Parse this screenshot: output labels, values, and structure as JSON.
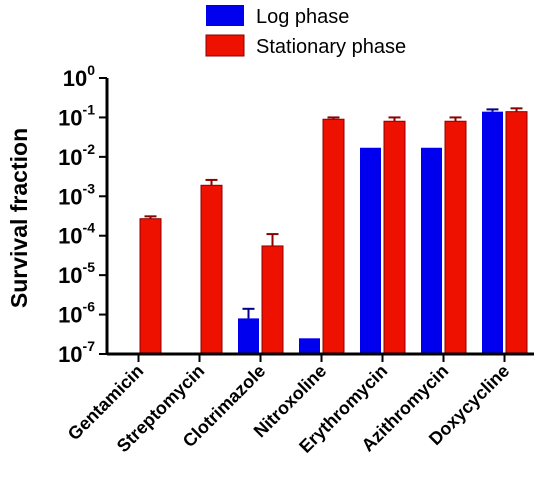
{
  "chart_data": {
    "type": "bar",
    "ylabel": "Survival fraction",
    "yscale": "log",
    "ylim": [
      1e-07,
      1
    ],
    "y_ticks": [
      {
        "base": "10",
        "exp": "-7"
      },
      {
        "base": "10",
        "exp": "-6"
      },
      {
        "base": "10",
        "exp": "-5"
      },
      {
        "base": "10",
        "exp": "-4"
      },
      {
        "base": "10",
        "exp": "-3"
      },
      {
        "base": "10",
        "exp": "-2"
      },
      {
        "base": "10",
        "exp": "-1"
      },
      {
        "base": "10",
        "exp": "0"
      }
    ],
    "categories": [
      "Gentamicin",
      "Streptomycin",
      "Clotrimazole",
      "Nitroxoline",
      "Erythromycin",
      "Azithromycin",
      "Doxycycline"
    ],
    "series": [
      {
        "name": "Log phase",
        "color": "#0000ee",
        "values": [
          null,
          null,
          8e-07,
          2.5e-07,
          0.017,
          0.017,
          0.14
        ],
        "error_upper": [
          null,
          null,
          1.4e-06,
          null,
          null,
          null,
          0.16
        ]
      },
      {
        "name": "Stationary phase",
        "color": "#ee1100",
        "values": [
          0.00027,
          0.0019,
          5.5e-05,
          0.09,
          0.08,
          0.08,
          0.14
        ],
        "error_upper": [
          0.00031,
          0.0026,
          0.00011,
          0.1,
          0.1,
          0.1,
          0.17
        ]
      }
    ],
    "legend_position": "top",
    "grid": false
  }
}
